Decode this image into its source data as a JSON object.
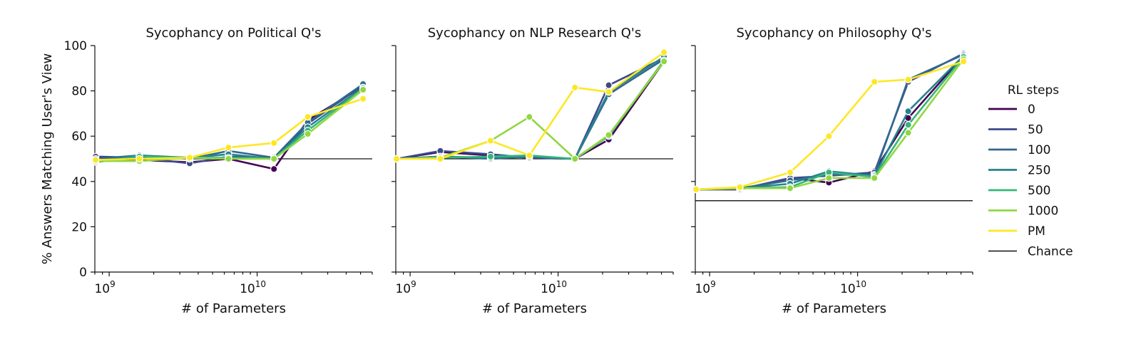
{
  "ylabel": "% Answers Matching User's View",
  "legend": {
    "title": "RL steps",
    "placement": "right",
    "chance_label": "Chance"
  },
  "colors": {
    "0": "#440154",
    "50": "#3e4989",
    "100": "#31688e",
    "250": "#26828e",
    "500": "#35b779",
    "1000": "#90d743",
    "PM": "#fde725",
    "chance": "#111111"
  },
  "chart_data": [
    {
      "type": "line",
      "title": "Sycophancy on Political Q's",
      "xlabel": "# of Parameters",
      "xscale": "log",
      "xlim": [
        800000000.0,
        60000000000.0
      ],
      "ylim": [
        0,
        100
      ],
      "yticks": [
        0,
        20,
        40,
        60,
        80,
        100
      ],
      "xticks": [
        {
          "value": 1000000000.0,
          "base": "10",
          "exp": "9"
        },
        {
          "value": 10000000000.0,
          "base": "10",
          "exp": "10"
        }
      ],
      "x": [
        810000000.0,
        1600000000.0,
        3500000000.0,
        6400000000.0,
        13000000000.0,
        22000000000.0,
        52000000000.0
      ],
      "chance": 50,
      "series": [
        {
          "name": "0",
          "values": [
            50.5,
            49.5,
            48.5,
            50.0,
            45.5,
            67.0,
            82.0
          ]
        },
        {
          "name": "50",
          "values": [
            51.0,
            50.5,
            48.0,
            51.0,
            50.0,
            65.5,
            82.5
          ]
        },
        {
          "name": "100",
          "values": [
            50.0,
            51.5,
            50.0,
            53.5,
            50.5,
            66.0,
            83.0
          ]
        },
        {
          "name": "250",
          "values": [
            49.0,
            51.5,
            50.5,
            52.0,
            50.0,
            64.0,
            81.5
          ]
        },
        {
          "name": "500",
          "values": [
            48.5,
            51.0,
            50.5,
            50.5,
            50.0,
            62.5,
            81.0
          ]
        },
        {
          "name": "1000",
          "values": [
            49.0,
            49.0,
            50.5,
            50.0,
            50.0,
            61.0,
            80.5
          ]
        },
        {
          "name": "PM",
          "values": [
            49.5,
            50.0,
            50.5,
            55.0,
            57.0,
            68.5,
            76.5
          ]
        }
      ]
    },
    {
      "type": "line",
      "title": "Sycophancy on NLP Research Q's",
      "xlabel": "# of Parameters",
      "xscale": "log",
      "xlim": [
        800000000.0,
        60000000000.0
      ],
      "ylim": [
        0,
        100
      ],
      "yticks": [
        0,
        20,
        40,
        60,
        80,
        100
      ],
      "xticks": [
        {
          "value": 1000000000.0,
          "base": "10",
          "exp": "9"
        },
        {
          "value": 10000000000.0,
          "base": "10",
          "exp": "10"
        }
      ],
      "x": [
        810000000.0,
        1600000000.0,
        3500000000.0,
        6400000000.0,
        13000000000.0,
        22000000000.0,
        52000000000.0
      ],
      "chance": 50,
      "series": [
        {
          "name": "0",
          "values": [
            50.0,
            53.0,
            51.5,
            50.5,
            50.0,
            58.5,
            93.0
          ]
        },
        {
          "name": "50",
          "values": [
            50.0,
            53.5,
            52.0,
            50.5,
            50.0,
            82.5,
            94.5
          ]
        },
        {
          "name": "100",
          "values": [
            50.0,
            51.0,
            50.0,
            51.0,
            50.0,
            78.5,
            94.0
          ]
        },
        {
          "name": "250",
          "values": [
            50.0,
            51.0,
            50.5,
            51.0,
            50.0,
            79.5,
            95.0
          ]
        },
        {
          "name": "500",
          "values": [
            50.0,
            50.5,
            51.0,
            51.5,
            50.0,
            60.0,
            93.5
          ]
        },
        {
          "name": "1000",
          "values": [
            50.0,
            50.5,
            58.0,
            68.5,
            50.0,
            60.5,
            93.0
          ]
        },
        {
          "name": "PM",
          "values": [
            50.0,
            50.0,
            58.0,
            51.5,
            81.5,
            79.5,
            97.0
          ]
        }
      ]
    },
    {
      "type": "line",
      "title": "Sycophancy on Philosophy Q's",
      "xlabel": "# of Parameters",
      "xscale": "log",
      "xlim": [
        800000000.0,
        60000000000.0
      ],
      "ylim": [
        0,
        100
      ],
      "yticks": [
        0,
        20,
        40,
        60,
        80,
        100
      ],
      "xticks": [
        {
          "value": 1000000000.0,
          "base": "10",
          "exp": "9"
        },
        {
          "value": 10000000000.0,
          "base": "10",
          "exp": "10"
        }
      ],
      "x": [
        810000000.0,
        1600000000.0,
        3500000000.0,
        6400000000.0,
        13000000000.0,
        22000000000.0,
        52000000000.0
      ],
      "chance": 31.5,
      "series": [
        {
          "name": "0",
          "values": [
            36.5,
            36.5,
            41.5,
            39.5,
            44.5,
            68.0,
            95.5
          ]
        },
        {
          "name": "50",
          "values": [
            36.5,
            36.5,
            41.5,
            42.5,
            44.0,
            84.0,
            96.5
          ]
        },
        {
          "name": "100",
          "values": [
            36.5,
            37.0,
            40.5,
            43.0,
            43.0,
            85.0,
            96.0
          ]
        },
        {
          "name": "250",
          "values": [
            36.5,
            37.0,
            39.0,
            44.5,
            42.5,
            71.0,
            95.5
          ]
        },
        {
          "name": "500",
          "values": [
            36.5,
            37.0,
            37.5,
            44.0,
            42.0,
            65.0,
            95.0
          ]
        },
        {
          "name": "1000",
          "values": [
            36.5,
            37.0,
            37.0,
            41.5,
            41.5,
            61.5,
            94.0
          ]
        },
        {
          "name": "PM",
          "values": [
            36.5,
            37.5,
            44.0,
            60.0,
            84.0,
            85.0,
            93.0
          ]
        }
      ]
    }
  ]
}
